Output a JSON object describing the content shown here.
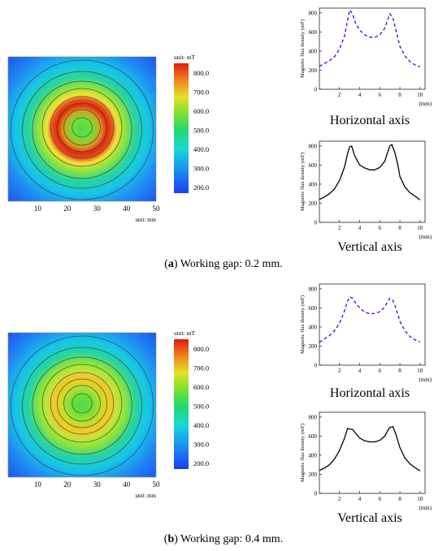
{
  "panels": [
    {
      "id": "a",
      "caption_letter": "a",
      "caption_text": "Working gap: 0.2 mm.",
      "map": {
        "colorbar_unit": "unit: mT",
        "colorbar_ticks": [
          "800.0",
          "700.0",
          "600.0",
          "500.0",
          "400.0",
          "300.0",
          "200.0"
        ],
        "x_unit": "unit: mm",
        "x_ticks": [
          "10",
          "20",
          "30",
          "40",
          "50"
        ],
        "ring_intensity": 1.0
      }
    },
    {
      "id": "b",
      "caption_letter": "b",
      "caption_text": "Working gap: 0.4 mm.",
      "map": {
        "colorbar_unit": "unit: mT",
        "colorbar_ticks": [
          "800.0",
          "700.0",
          "600.0",
          "500.0",
          "400.0",
          "300.0",
          "200.0"
        ],
        "x_unit": "unit: mm",
        "x_ticks": [
          "10",
          "20",
          "30",
          "40",
          "50"
        ],
        "ring_intensity": 0.65
      }
    }
  ],
  "chart_data": [
    {
      "type": "line",
      "panel": "a",
      "style": "dashed",
      "color": "#1f2fd8",
      "title": "Horizontal axis",
      "xlabel": "(mm)",
      "ylabel": "Magnetic flux density (mT)",
      "xlim": [
        0,
        10.5
      ],
      "ylim": [
        0,
        850
      ],
      "x_ticks": [
        2,
        4,
        6,
        8,
        10
      ],
      "y_ticks": [
        0,
        200,
        400,
        600,
        800
      ],
      "x": [
        0,
        0.5,
        1,
        1.5,
        2,
        2.5,
        2.8,
        3,
        3.3,
        3.6,
        4,
        4.5,
        5,
        5.5,
        6,
        6.5,
        6.8,
        7,
        7.3,
        7.6,
        8,
        8.5,
        9,
        9.5,
        10
      ],
      "y": [
        240,
        270,
        300,
        340,
        420,
        560,
        720,
        830,
        790,
        690,
        620,
        570,
        545,
        545,
        570,
        640,
        730,
        790,
        750,
        620,
        450,
        350,
        290,
        255,
        235
      ]
    },
    {
      "type": "line",
      "panel": "a",
      "style": "solid",
      "color": "#000000",
      "title": "Vertical axis",
      "xlabel": "(mm)",
      "ylabel": "Magnetic flux density (mT)",
      "xlim": [
        0,
        10.5
      ],
      "ylim": [
        0,
        850
      ],
      "x_ticks": [
        2,
        4,
        6,
        8,
        10
      ],
      "y_ticks": [
        0,
        200,
        400,
        600,
        800
      ],
      "x": [
        0,
        0.5,
        1,
        1.5,
        2,
        2.5,
        2.8,
        3,
        3.2,
        3.5,
        3.8,
        4,
        4.5,
        5,
        5.5,
        6,
        6.5,
        6.8,
        7,
        7.2,
        7.5,
        7.8,
        8,
        8.5,
        9,
        9.5,
        10
      ],
      "y": [
        240,
        265,
        300,
        350,
        440,
        580,
        720,
        790,
        800,
        700,
        640,
        600,
        570,
        550,
        550,
        575,
        640,
        740,
        800,
        815,
        730,
        600,
        480,
        370,
        310,
        275,
        235
      ]
    },
    {
      "type": "line",
      "panel": "b",
      "style": "dashed",
      "color": "#1f2fd8",
      "title": "Horizontal axis",
      "xlabel": "(mm)",
      "ylabel": "Magnetic flux density (mT)",
      "xlim": [
        0,
        10.5
      ],
      "ylim": [
        0,
        850
      ],
      "x_ticks": [
        2,
        4,
        6,
        8,
        10
      ],
      "y_ticks": [
        0,
        200,
        400,
        600,
        800
      ],
      "x": [
        0,
        0.5,
        1,
        1.5,
        2,
        2.5,
        2.8,
        3,
        3.3,
        3.6,
        4,
        4.5,
        5,
        5.5,
        6,
        6.5,
        6.8,
        7,
        7.3,
        7.6,
        8,
        8.5,
        9,
        9.5,
        10
      ],
      "y": [
        240,
        275,
        310,
        360,
        440,
        570,
        670,
        715,
        700,
        650,
        600,
        555,
        540,
        540,
        560,
        610,
        670,
        700,
        680,
        600,
        460,
        360,
        300,
        265,
        245
      ]
    },
    {
      "type": "line",
      "panel": "b",
      "style": "solid",
      "color": "#000000",
      "title": "Vertical axis",
      "xlabel": "(mm)",
      "ylabel": "Magnetic flux density (mT)",
      "xlim": [
        0,
        10.5
      ],
      "ylim": [
        0,
        850
      ],
      "x_ticks": [
        2,
        4,
        6,
        8,
        10
      ],
      "y_ticks": [
        0,
        200,
        400,
        600,
        800
      ],
      "x": [
        0,
        0.5,
        1,
        1.5,
        2,
        2.5,
        2.8,
        3,
        3.3,
        3.6,
        4,
        4.5,
        5,
        5.5,
        6,
        6.5,
        6.8,
        7,
        7.3,
        7.6,
        8,
        8.5,
        9,
        9.5,
        10
      ],
      "y": [
        240,
        265,
        300,
        360,
        450,
        580,
        680,
        675,
        670,
        630,
        580,
        550,
        540,
        540,
        555,
        600,
        660,
        690,
        700,
        620,
        480,
        370,
        310,
        270,
        235
      ]
    }
  ]
}
